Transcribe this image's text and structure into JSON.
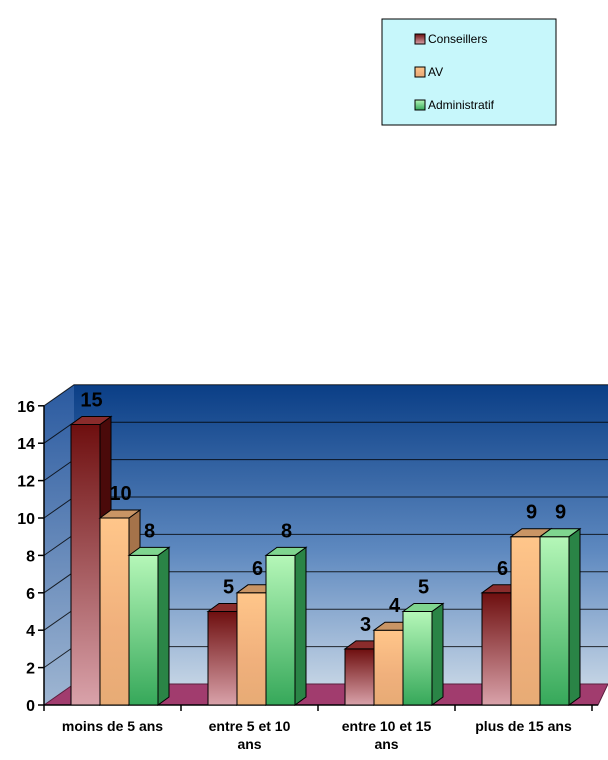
{
  "chart_data": {
    "type": "bar",
    "categories": [
      "moins de 5 ans",
      "entre 5 et 10 ans",
      "entre 10 et 15 ans",
      "plus de 15 ans"
    ],
    "series": [
      {
        "name": "Conseillers",
        "values": [
          15,
          5,
          3,
          6
        ]
      },
      {
        "name": "AV",
        "values": [
          10,
          6,
          4,
          9
        ]
      },
      {
        "name": "Administratif",
        "values": [
          8,
          8,
          5,
          9
        ]
      }
    ],
    "ylim": [
      0,
      16
    ],
    "yticks": [
      0,
      2,
      4,
      6,
      8,
      10,
      12,
      14,
      16
    ],
    "grid": true,
    "legend_position": "top-right",
    "colors": {
      "Conseillers": [
        "#6e0f0f",
        "#d9a2aa"
      ],
      "AV": [
        "#ffc68a",
        "#e7ab75"
      ],
      "Administratif": [
        "#b5f7b8",
        "#36a85a"
      ],
      "floor": "#a13c6e",
      "wall_top": "#0a3e86",
      "wall_bottom": "#c3d3e4"
    }
  }
}
